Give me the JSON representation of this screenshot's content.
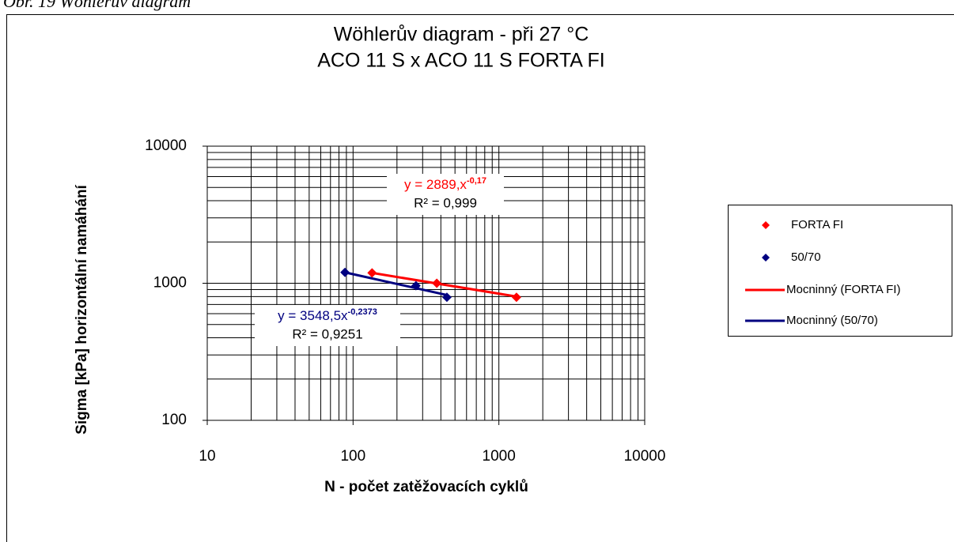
{
  "caption": "Obr. 19 Wöhlerův diagram",
  "chart_data": {
    "type": "scatter",
    "title": [
      "Wöhlerův diagram - při 27 °C",
      "ACO 11 S x ACO 11 S FORTA FI"
    ],
    "x_label": "N - počet zatěžovacích cyklů",
    "y_label": "Sigma [kPa] horizontální namáhání",
    "log_x": true,
    "log_y": true,
    "grid": "minor",
    "xlim": [
      10,
      10000
    ],
    "xticks": [
      10,
      100,
      1000,
      10000
    ],
    "ylim": [
      100,
      10000
    ],
    "yticks": [
      100,
      1000,
      10000
    ],
    "legend": "right",
    "series": [
      {
        "name": "FORTA FI",
        "kind": "points",
        "color": "#ff0000",
        "x": [
          135,
          375,
          1320
        ],
        "values": [
          1190,
          1000,
          790
        ]
      },
      {
        "name": "50/70",
        "kind": "points",
        "color": "#000080",
        "x": [
          88,
          270,
          440
        ],
        "values": [
          1200,
          960,
          790
        ]
      },
      {
        "name": "Mocninný (FORTA FI)",
        "kind": "line",
        "color": "#ff0000",
        "x": [
          135,
          1320
        ],
        "values": [
          1190,
          800
        ]
      },
      {
        "name": "Mocninný (50/70)",
        "kind": "line",
        "color": "#000080",
        "x": [
          88,
          440
        ],
        "values": [
          1200,
          820
        ]
      }
    ],
    "annotations": [
      {
        "text": "y = 2889,x",
        "sup": "-0,17",
        "r2": "R² = 0,999",
        "color": "#ff0000"
      },
      {
        "text": "y = 3548,5x",
        "sup": "-0,2373",
        "r2": "R² = 0,9251",
        "color": "#000080"
      }
    ]
  }
}
